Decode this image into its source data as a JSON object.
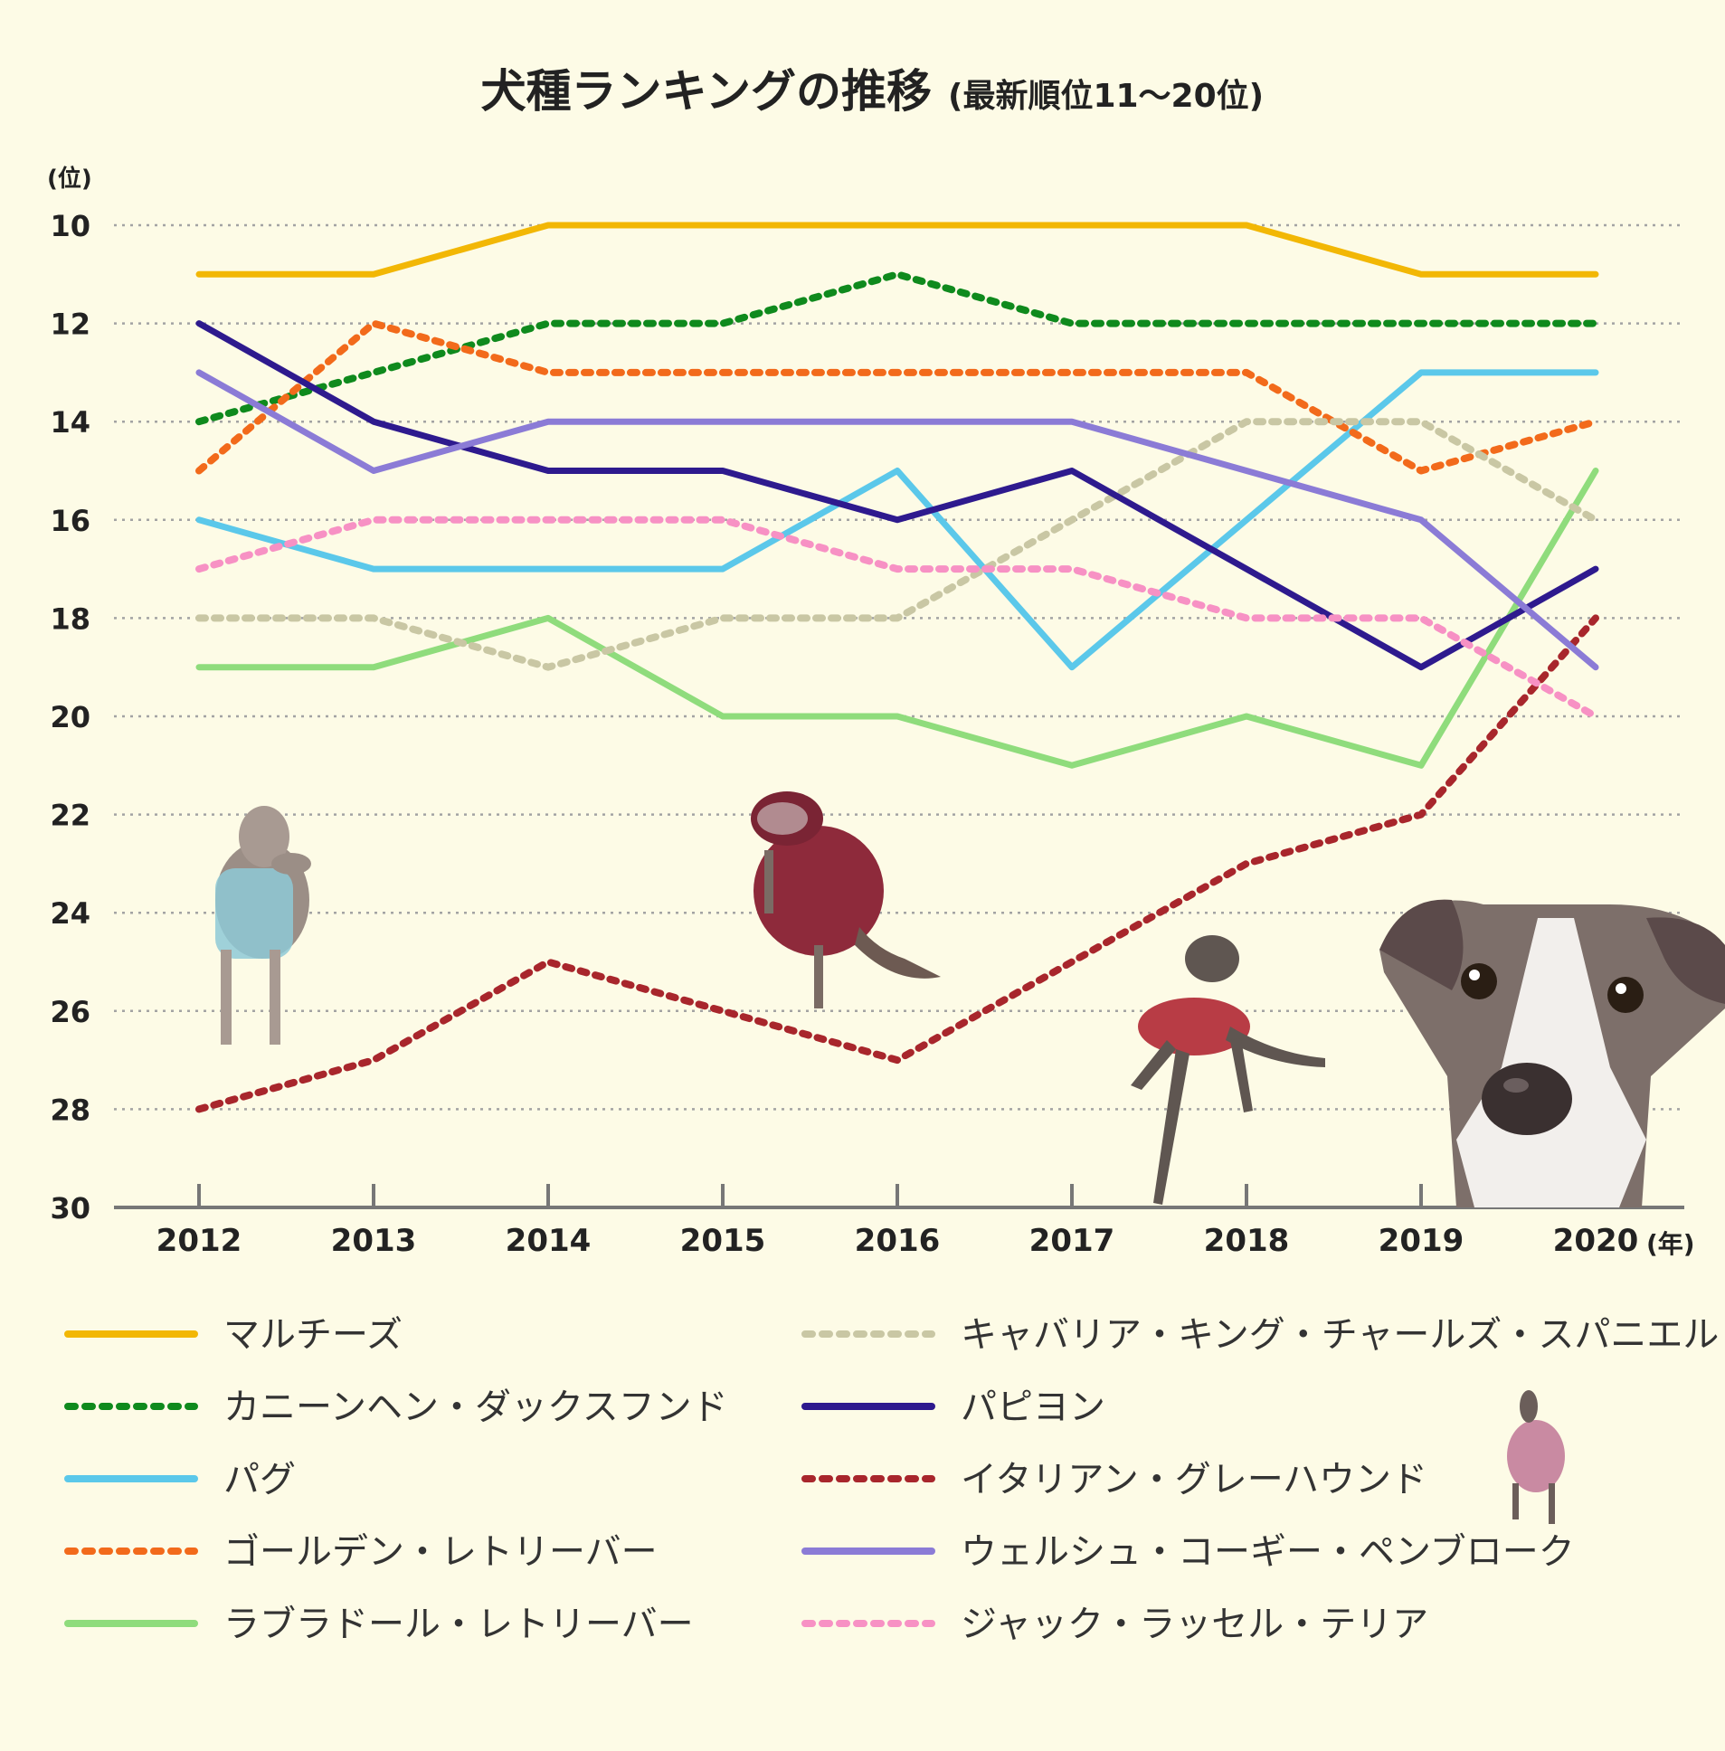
{
  "chart_data": {
    "type": "line",
    "title": "犬種ランキングの推移",
    "subtitle": "(最新順位11〜20位)",
    "ylabel": "(位)",
    "xlabel": "(年)",
    "ylim": [
      10,
      30
    ],
    "y_inverted": true,
    "y_ticks": [
      10,
      12,
      14,
      16,
      18,
      20,
      22,
      24,
      26,
      28,
      30
    ],
    "x": [
      2012,
      2013,
      2014,
      2015,
      2016,
      2017,
      2018,
      2019,
      2020
    ],
    "x_tick_labels": [
      "2012",
      "2013",
      "2014",
      "2015",
      "2016",
      "2017",
      "2018",
      "2019",
      "2020"
    ],
    "grid": true,
    "legend_position": "bottom",
    "series": [
      {
        "name": "マルチーズ",
        "color": "#f2b705",
        "style": "solid",
        "values": [
          11,
          11,
          10,
          10,
          10,
          10,
          10,
          11,
          11
        ]
      },
      {
        "name": "カニーンヘン・ダックスフンド",
        "color": "#0f8a1d",
        "style": "dotted",
        "values": [
          14,
          13,
          12,
          12,
          11,
          12,
          12,
          12,
          12
        ]
      },
      {
        "name": "パグ",
        "color": "#5bc8ea",
        "style": "solid",
        "values": [
          16,
          17,
          17,
          17,
          15,
          19,
          16,
          13,
          13
        ]
      },
      {
        "name": "ゴールデン・レトリーバー",
        "color": "#f26a1b",
        "style": "dotted",
        "values": [
          15,
          12,
          13,
          13,
          13,
          13,
          13,
          15,
          14
        ]
      },
      {
        "name": "ラブラドール・レトリーバー",
        "color": "#8fdc7c",
        "style": "solid",
        "values": [
          19,
          19,
          18,
          20,
          20,
          21,
          20,
          21,
          15
        ]
      },
      {
        "name": "キャバリア・キング・チャールズ・スパニエル",
        "color": "#c9c7a4",
        "style": "dotted",
        "values": [
          18,
          18,
          19,
          18,
          18,
          16,
          14,
          14,
          16
        ]
      },
      {
        "name": "パピヨン",
        "color": "#2e1a8e",
        "style": "solid",
        "values": [
          12,
          14,
          15,
          15,
          16,
          15,
          17,
          19,
          17
        ]
      },
      {
        "name": "イタリアン・グレーハウンド",
        "color": "#a8262c",
        "style": "dotted",
        "values": [
          28,
          27,
          25,
          26,
          27,
          25,
          23,
          22,
          18
        ]
      },
      {
        "name": "ウェルシュ・コーギー・ペンブローク",
        "color": "#8b7bd6",
        "style": "solid",
        "values": [
          13,
          15,
          14,
          14,
          14,
          14,
          15,
          16,
          19
        ]
      },
      {
        "name": "ジャック・ラッセル・テリア",
        "color": "#f791c4",
        "style": "dotted",
        "values": [
          17,
          16,
          16,
          16,
          17,
          17,
          18,
          18,
          20
        ]
      }
    ]
  },
  "decorations": [
    {
      "icon": "italian-greyhound-photo-sitting"
    },
    {
      "icon": "italian-greyhound-photo-sweater"
    },
    {
      "icon": "italian-greyhound-photo-jumping"
    },
    {
      "icon": "italian-greyhound-photo-face"
    },
    {
      "icon": "italian-greyhound-photo-small"
    }
  ]
}
